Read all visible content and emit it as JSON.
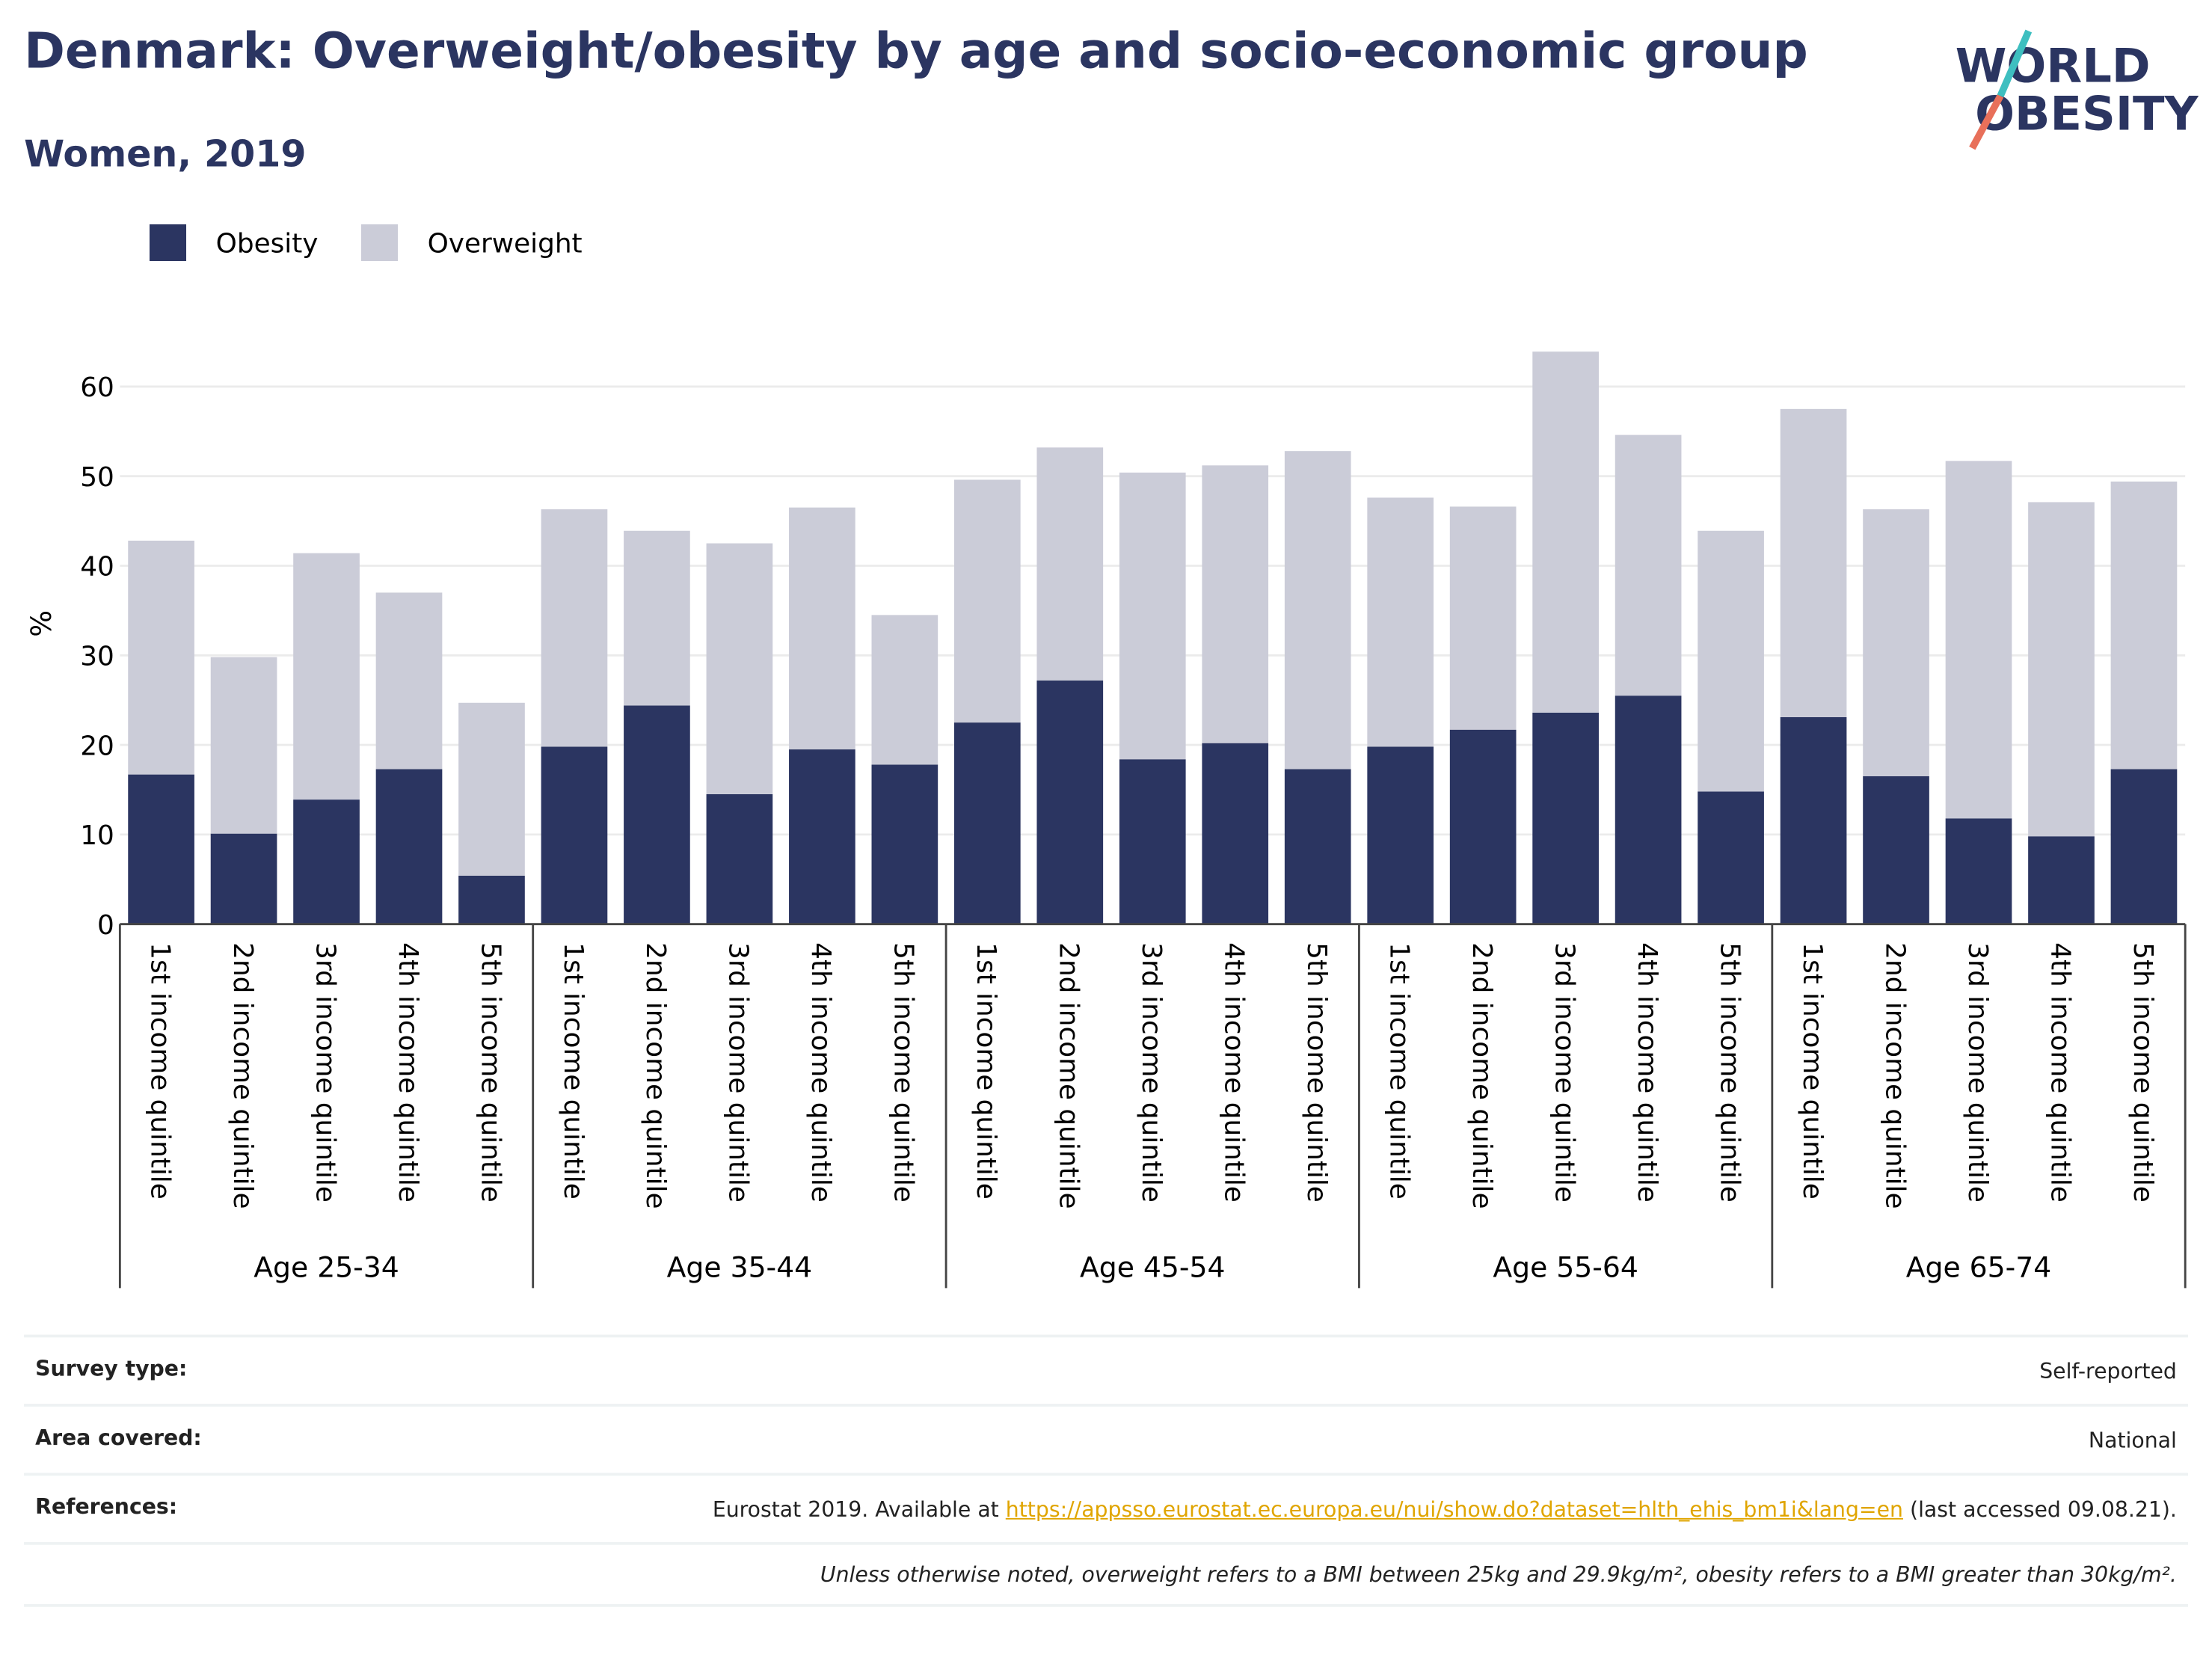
{
  "header": {
    "title": "Denmark: Overweight/obesity by age and socio-economic group",
    "subtitle": "Women, 2019",
    "logo": [
      "WORLD",
      "OBESITY"
    ]
  },
  "chart_data": {
    "type": "stacked-bar",
    "ylabel": "%",
    "categories": [
      "1st income quintile",
      "2nd income quintile",
      "3rd income quintile",
      "4th income quintile",
      "5th income quintile",
      "1st income quintile",
      "2nd income quintile",
      "3rd income quintile",
      "4th income quintile",
      "5th income quintile",
      "1st income quintile",
      "2nd income quintile",
      "3rd income quintile",
      "4th income quintile",
      "5th income quintile",
      "1st income quintile",
      "2nd income quintile",
      "3rd income quintile",
      "4th income quintile",
      "5th income quintile",
      "1st income quintile",
      "2nd income quintile",
      "3rd income quintile",
      "4th income quintile",
      "5th income quintile"
    ],
    "groups": [
      "Age 25-34",
      "Age 35-44",
      "Age 45-54",
      "Age 55-64",
      "Age 65-74"
    ],
    "series": [
      {
        "name": "Obesity",
        "color": "#2b3561",
        "values": [
          16.7,
          10.1,
          13.9,
          17.3,
          5.4,
          19.8,
          24.4,
          14.5,
          19.5,
          17.8,
          22.5,
          27.2,
          18.4,
          20.2,
          17.3,
          19.8,
          21.7,
          23.6,
          25.5,
          14.8,
          23.1,
          16.5,
          11.8,
          9.8,
          17.3
        ]
      },
      {
        "name": "Overweight",
        "color": "#cbccd8",
        "values": [
          26.1,
          19.7,
          27.5,
          19.7,
          19.3,
          26.5,
          19.5,
          28.0,
          27.0,
          16.7,
          27.1,
          26.0,
          32.0,
          31.0,
          35.5,
          27.8,
          24.9,
          40.3,
          29.1,
          29.1,
          34.4,
          29.8,
          39.9,
          37.3,
          32.1
        ]
      }
    ],
    "ylim": [
      0,
      68
    ],
    "yticks": [
      0,
      10,
      20,
      30,
      40,
      50,
      60
    ],
    "grid": true,
    "legend": "top-left"
  },
  "table": {
    "rows": [
      [
        "Survey type:",
        "Self-reported"
      ],
      [
        "Area covered:",
        "National"
      ]
    ],
    "references": {
      "label": "References:",
      "before": "Eurostat 2019. Available at",
      "link": "https://appsso.eurostat.ec.europa.eu/nui/show.do?dataset=hlth_ehis_bm1i&lang=en",
      "after": "(last accessed 09.08.21)."
    },
    "note": "Unless otherwise noted, overweight refers to a BMI between 25kg and 29.9kg/m², obesity refers to a BMI greater than 30kg/m²."
  }
}
